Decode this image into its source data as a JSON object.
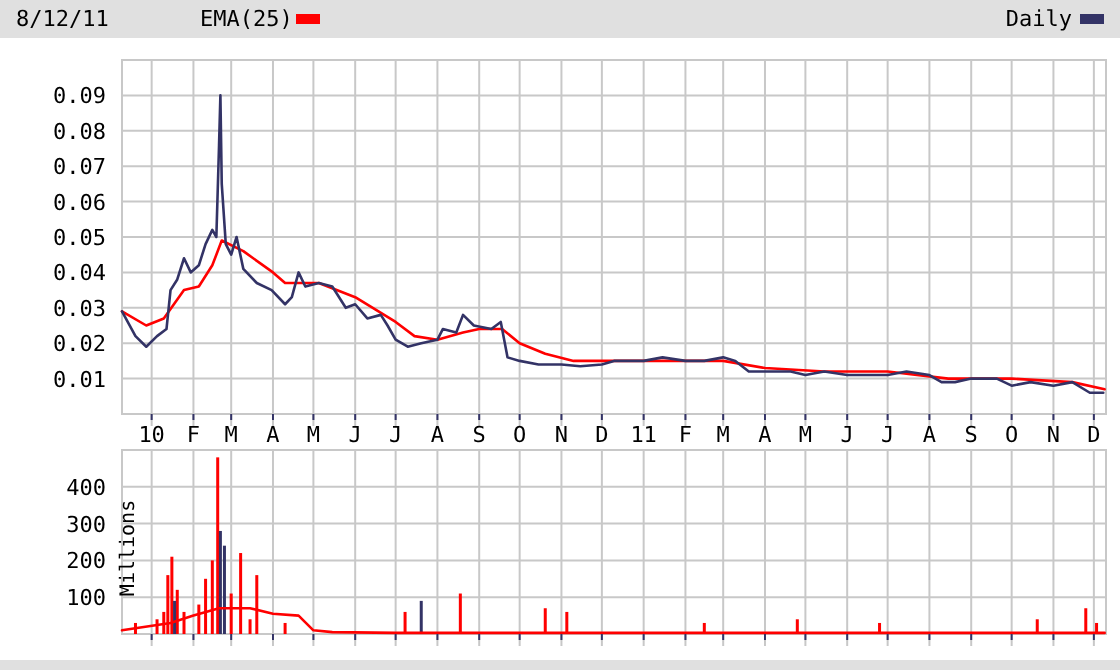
{
  "chart_data": [
    {
      "type": "line",
      "title": "8/12/11",
      "legend": "top",
      "grid": true,
      "tick_labels": "xy",
      "xlim": [
        "2009-12-10",
        "2011-12-10"
      ],
      "ylim": [
        0,
        0.1
      ],
      "yticks": [
        0.01,
        0.02,
        0.03,
        0.04,
        0.05,
        0.06,
        0.07,
        0.08,
        0.09
      ],
      "xticks": [
        {
          "value": "2010-01-01",
          "label": "10"
        },
        {
          "value": "2010-02-01",
          "label": "F"
        },
        {
          "value": "2010-03-01",
          "label": "M"
        },
        {
          "value": "2010-04-01",
          "label": "A"
        },
        {
          "value": "2010-05-01",
          "label": "M"
        },
        {
          "value": "2010-06-01",
          "label": "J"
        },
        {
          "value": "2010-07-01",
          "label": "J"
        },
        {
          "value": "2010-08-01",
          "label": "A"
        },
        {
          "value": "2010-09-01",
          "label": "S"
        },
        {
          "value": "2010-10-01",
          "label": "O"
        },
        {
          "value": "2010-11-01",
          "label": "N"
        },
        {
          "value": "2010-12-01",
          "label": "D"
        },
        {
          "value": "2011-01-01",
          "label": "11"
        },
        {
          "value": "2011-02-01",
          "label": "F"
        },
        {
          "value": "2011-03-01",
          "label": "M"
        },
        {
          "value": "2011-04-01",
          "label": "A"
        },
        {
          "value": "2011-05-01",
          "label": "M"
        },
        {
          "value": "2011-06-01",
          "label": "J"
        },
        {
          "value": "2011-07-01",
          "label": "J"
        },
        {
          "value": "2011-08-01",
          "label": "A"
        },
        {
          "value": "2011-09-01",
          "label": "S"
        },
        {
          "value": "2011-10-01",
          "label": "O"
        },
        {
          "value": "2011-11-01",
          "label": "N"
        },
        {
          "value": "2011-12-01",
          "label": "D"
        }
      ],
      "series": [
        {
          "name": "EMA(25)",
          "color": "#ff0000",
          "x": [
            "2009-12-10",
            "2009-12-28",
            "2010-01-10",
            "2010-01-25",
            "2010-02-05",
            "2010-02-15",
            "2010-02-22",
            "2010-03-10",
            "2010-04-01",
            "2010-04-10",
            "2010-05-05",
            "2010-06-01",
            "2010-07-01",
            "2010-07-15",
            "2010-08-01",
            "2010-08-20",
            "2010-09-01",
            "2010-09-18",
            "2010-10-01",
            "2010-10-20",
            "2010-11-10",
            "2010-12-01",
            "2011-01-15",
            "2011-03-01",
            "2011-04-01",
            "2011-05-15",
            "2011-07-01",
            "2011-08-15",
            "2011-10-01",
            "2011-11-15",
            "2011-12-09"
          ],
          "values": [
            0.029,
            0.025,
            0.027,
            0.035,
            0.036,
            0.042,
            0.049,
            0.046,
            0.04,
            0.037,
            0.037,
            0.033,
            0.026,
            0.022,
            0.021,
            0.023,
            0.024,
            0.024,
            0.02,
            0.017,
            0.015,
            0.015,
            0.015,
            0.015,
            0.013,
            0.012,
            0.012,
            0.01,
            0.01,
            0.009,
            0.007
          ]
        },
        {
          "name": "Daily",
          "color": "#333366",
          "x": [
            "2009-12-10",
            "2009-12-20",
            "2009-12-28",
            "2010-01-05",
            "2010-01-12",
            "2010-01-15",
            "2010-01-20",
            "2010-01-25",
            "2010-01-30",
            "2010-02-05",
            "2010-02-10",
            "2010-02-15",
            "2010-02-18",
            "2010-02-20",
            "2010-02-21",
            "2010-02-22",
            "2010-02-25",
            "2010-03-01",
            "2010-03-05",
            "2010-03-10",
            "2010-03-20",
            "2010-03-31",
            "2010-04-10",
            "2010-04-15",
            "2010-04-20",
            "2010-04-25",
            "2010-05-05",
            "2010-05-15",
            "2010-05-25",
            "2010-06-01",
            "2010-06-10",
            "2010-06-20",
            "2010-06-25",
            "2010-07-01",
            "2010-07-10",
            "2010-07-20",
            "2010-08-01",
            "2010-08-05",
            "2010-08-15",
            "2010-08-20",
            "2010-08-28",
            "2010-09-10",
            "2010-09-17",
            "2010-09-22",
            "2010-10-01",
            "2010-10-15",
            "2010-11-01",
            "2010-11-15",
            "2010-12-01",
            "2010-12-10",
            "2011-01-01",
            "2011-01-15",
            "2011-02-01",
            "2011-02-15",
            "2011-03-01",
            "2011-03-10",
            "2011-03-20",
            "2011-04-01",
            "2011-04-20",
            "2011-05-01",
            "2011-05-15",
            "2011-06-01",
            "2011-06-15",
            "2011-07-01",
            "2011-07-15",
            "2011-08-01",
            "2011-08-10",
            "2011-08-20",
            "2011-09-01",
            "2011-09-20",
            "2011-10-01",
            "2011-10-15",
            "2011-11-01",
            "2011-11-15",
            "2011-11-28",
            "2011-12-08"
          ],
          "values": [
            0.029,
            0.022,
            0.019,
            0.022,
            0.024,
            0.035,
            0.038,
            0.044,
            0.04,
            0.042,
            0.048,
            0.052,
            0.05,
            0.076,
            0.09,
            0.065,
            0.048,
            0.045,
            0.05,
            0.041,
            0.037,
            0.035,
            0.031,
            0.033,
            0.04,
            0.036,
            0.037,
            0.036,
            0.03,
            0.031,
            0.027,
            0.028,
            0.025,
            0.021,
            0.019,
            0.02,
            0.021,
            0.024,
            0.023,
            0.028,
            0.025,
            0.024,
            0.026,
            0.016,
            0.015,
            0.014,
            0.014,
            0.0135,
            0.014,
            0.015,
            0.015,
            0.016,
            0.015,
            0.015,
            0.016,
            0.015,
            0.012,
            0.012,
            0.012,
            0.011,
            0.012,
            0.011,
            0.011,
            0.011,
            0.012,
            0.011,
            0.009,
            0.009,
            0.01,
            0.01,
            0.008,
            0.009,
            0.008,
            0.009,
            0.006,
            0.006
          ]
        }
      ]
    },
    {
      "type": "bar",
      "ylabel": "Millions",
      "grid": true,
      "tick_labels": "y",
      "xlim": [
        "2009-12-10",
        "2011-12-10"
      ],
      "ylim": [
        0,
        500
      ],
      "yticks": [
        100,
        200,
        300,
        400
      ],
      "xticks": [
        {
          "value": "2010-01-01",
          "label": null
        },
        {
          "value": "2010-02-01",
          "label": null
        },
        {
          "value": "2010-03-01",
          "label": null
        },
        {
          "value": "2010-04-01",
          "label": null
        },
        {
          "value": "2010-05-01",
          "label": null
        },
        {
          "value": "2010-06-01",
          "label": null
        },
        {
          "value": "2010-07-01",
          "label": null
        },
        {
          "value": "2010-08-01",
          "label": null
        },
        {
          "value": "2010-09-01",
          "label": null
        },
        {
          "value": "2010-10-01",
          "label": null
        },
        {
          "value": "2010-11-01",
          "label": null
        },
        {
          "value": "2010-12-01",
          "label": null
        },
        {
          "value": "2011-01-01",
          "label": null
        },
        {
          "value": "2011-02-01",
          "label": null
        },
        {
          "value": "2011-03-01",
          "label": null
        },
        {
          "value": "2011-04-01",
          "label": null
        },
        {
          "value": "2011-05-01",
          "label": null
        },
        {
          "value": "2011-06-01",
          "label": null
        },
        {
          "value": "2011-07-01",
          "label": null
        },
        {
          "value": "2011-08-01",
          "label": null
        },
        {
          "value": "2011-09-01",
          "label": null
        },
        {
          "value": "2011-10-01",
          "label": null
        },
        {
          "value": "2011-11-01",
          "label": null
        },
        {
          "value": "2011-12-01",
          "label": null
        }
      ],
      "series": [
        {
          "color": "#ff0000",
          "x": [
            "2009-12-20",
            "2010-01-05",
            "2010-01-10",
            "2010-01-13",
            "2010-01-16",
            "2010-01-20",
            "2010-01-25",
            "2010-02-05",
            "2010-02-10",
            "2010-02-15",
            "2010-02-19",
            "2010-03-01",
            "2010-03-08",
            "2010-03-15",
            "2010-03-20",
            "2010-04-10",
            "2010-07-08",
            "2010-08-18",
            "2010-10-20",
            "2010-11-05",
            "2011-02-15",
            "2011-04-25",
            "2011-06-25",
            "2011-10-20",
            "2011-11-25",
            "2011-12-03"
          ],
          "values": [
            30,
            40,
            60,
            160,
            210,
            120,
            60,
            80,
            150,
            200,
            480,
            110,
            220,
            40,
            160,
            30,
            60,
            110,
            70,
            60,
            30,
            40,
            30,
            40,
            70,
            30
          ]
        },
        {
          "color": "#333366",
          "x": [
            "2010-01-18",
            "2010-02-21",
            "2010-02-24",
            "2010-07-20"
          ],
          "values": [
            90,
            280,
            240,
            90
          ]
        },
        {
          "type": "line",
          "color": "#ff0000",
          "x": [
            "2009-12-10",
            "2010-01-15",
            "2010-02-01",
            "2010-02-20",
            "2010-03-15",
            "2010-04-01",
            "2010-04-20",
            "2010-05-01",
            "2010-05-15",
            "2010-07-01",
            "2011-12-09"
          ],
          "values": [
            10,
            30,
            50,
            70,
            70,
            55,
            50,
            10,
            5,
            3,
            3
          ]
        }
      ]
    }
  ]
}
